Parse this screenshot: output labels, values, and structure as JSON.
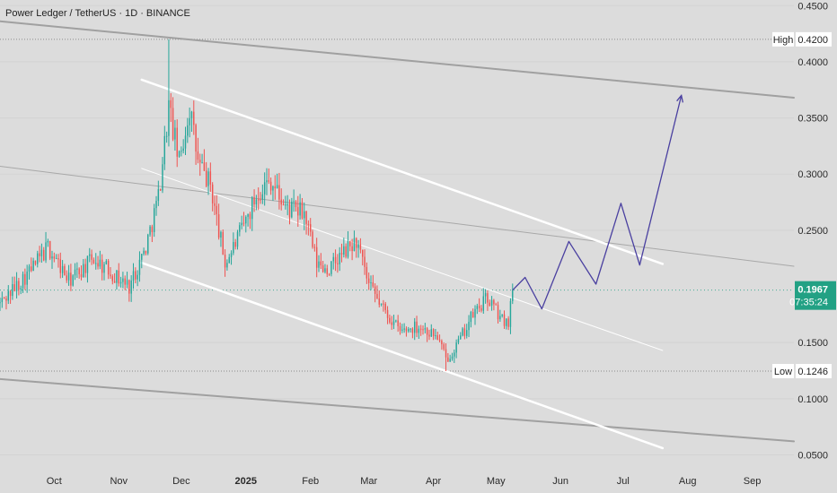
{
  "header": {
    "title": "Power Ledger / TetherUS · 1D · BINANCE"
  },
  "chart_data": {
    "type": "candlestick",
    "symbol": "Power Ledger / TetherUS",
    "interval": "1D",
    "exchange": "BINANCE",
    "x_ticks": [
      {
        "label": "Oct",
        "date": "2024-10-01"
      },
      {
        "label": "Nov",
        "date": "2024-11-01"
      },
      {
        "label": "Dec",
        "date": "2024-12-01"
      },
      {
        "label": "2025",
        "date": "2025-01-01",
        "bold": true
      },
      {
        "label": "Feb",
        "date": "2025-02-01"
      },
      {
        "label": "Mar",
        "date": "2025-03-01"
      },
      {
        "label": "Apr",
        "date": "2025-04-01"
      },
      {
        "label": "May",
        "date": "2025-05-01"
      },
      {
        "label": "Jun",
        "date": "2025-06-01"
      },
      {
        "label": "Jul",
        "date": "2025-07-01"
      },
      {
        "label": "Aug",
        "date": "2025-08-01"
      },
      {
        "label": "Sep",
        "date": "2025-09-01"
      }
    ],
    "y_ticks": [
      "0.4500",
      "0.4000",
      "0.3500",
      "0.3000",
      "0.2500",
      "0.1500",
      "0.1000",
      "0.0500"
    ],
    "ylim": [
      0.04,
      0.455
    ],
    "xlim": [
      "2024-09-05",
      "2025-09-21"
    ],
    "high": {
      "label": "High",
      "value": "0.4200",
      "date": "2024-11-25"
    },
    "low": {
      "label": "Low",
      "value": "0.1246",
      "date": "2025-04-07"
    },
    "last_price": {
      "value": "0.1967",
      "countdown": "07:35:24",
      "color": "#22a184"
    },
    "colors": {
      "up": "#26a69a",
      "down": "#ef5350",
      "projection": "#4a40a0",
      "channel": "#ffffff",
      "trendline": "#9a9a9a"
    },
    "trendlines": [
      {
        "name": "upper-descending-gray",
        "points": [
          [
            "2024-09-05",
            0.436
          ],
          [
            "2025-09-21",
            0.368
          ]
        ],
        "color": "#a0a0a0",
        "width": 2
      },
      {
        "name": "lower-descending-gray",
        "points": [
          [
            "2024-09-05",
            0.1175
          ],
          [
            "2025-09-21",
            0.062
          ]
        ],
        "color": "#a0a0a0",
        "width": 2
      },
      {
        "name": "middle-thin-gray",
        "points": [
          [
            "2024-09-05",
            0.307
          ],
          [
            "2025-09-21",
            0.218
          ]
        ],
        "color": "#a8a8a8",
        "width": 1
      },
      {
        "name": "channel-top",
        "points": [
          [
            "2024-11-12",
            0.384
          ],
          [
            "2025-07-20",
            0.22
          ]
        ],
        "color": "#ffffff",
        "width": 2.5
      },
      {
        "name": "channel-mid",
        "points": [
          [
            "2024-11-12",
            0.305
          ],
          [
            "2025-07-20",
            0.143
          ]
        ],
        "color": "#ffffff",
        "width": 1
      },
      {
        "name": "channel-bottom",
        "points": [
          [
            "2024-11-12",
            0.221
          ],
          [
            "2025-07-20",
            0.056
          ]
        ],
        "color": "#ffffff",
        "width": 2.5
      }
    ],
    "projection": [
      [
        "2025-05-09",
        0.1967
      ],
      [
        "2025-05-15",
        0.208
      ],
      [
        "2025-05-23",
        0.18
      ],
      [
        "2025-06-05",
        0.24
      ],
      [
        "2025-06-18",
        0.202
      ],
      [
        "2025-06-30",
        0.274
      ],
      [
        "2025-07-09",
        0.219
      ],
      [
        "2025-07-29",
        0.37
      ]
    ],
    "anchors": [
      [
        "2024-09-05",
        0.185
      ],
      [
        "2024-09-20",
        0.215
      ],
      [
        "2024-09-28",
        0.235
      ],
      [
        "2024-10-08",
        0.205
      ],
      [
        "2024-10-20",
        0.225
      ],
      [
        "2024-10-30",
        0.21
      ],
      [
        "2024-11-06",
        0.2
      ],
      [
        "2024-11-14",
        0.235
      ],
      [
        "2024-11-20",
        0.28
      ],
      [
        "2024-11-25",
        0.36
      ],
      [
        "2024-11-30",
        0.31
      ],
      [
        "2024-12-05",
        0.36
      ],
      [
        "2024-12-09",
        0.31
      ],
      [
        "2024-12-15",
        0.29
      ],
      [
        "2024-12-22",
        0.22
      ],
      [
        "2024-12-30",
        0.25
      ],
      [
        "2025-01-07",
        0.285
      ],
      [
        "2025-01-13",
        0.295
      ],
      [
        "2025-01-20",
        0.27
      ],
      [
        "2025-01-29",
        0.265
      ],
      [
        "2025-02-04",
        0.22
      ],
      [
        "2025-02-10",
        0.215
      ],
      [
        "2025-02-17",
        0.23
      ],
      [
        "2025-02-23",
        0.24
      ],
      [
        "2025-03-01",
        0.2
      ],
      [
        "2025-03-08",
        0.18
      ],
      [
        "2025-03-16",
        0.16
      ],
      [
        "2025-03-25",
        0.165
      ],
      [
        "2025-04-03",
        0.155
      ],
      [
        "2025-04-07",
        0.135
      ],
      [
        "2025-04-13",
        0.15
      ],
      [
        "2025-04-20",
        0.175
      ],
      [
        "2025-04-27",
        0.19
      ],
      [
        "2025-05-04",
        0.17
      ],
      [
        "2025-05-07",
        0.17
      ],
      [
        "2025-05-09",
        0.1967
      ]
    ]
  }
}
